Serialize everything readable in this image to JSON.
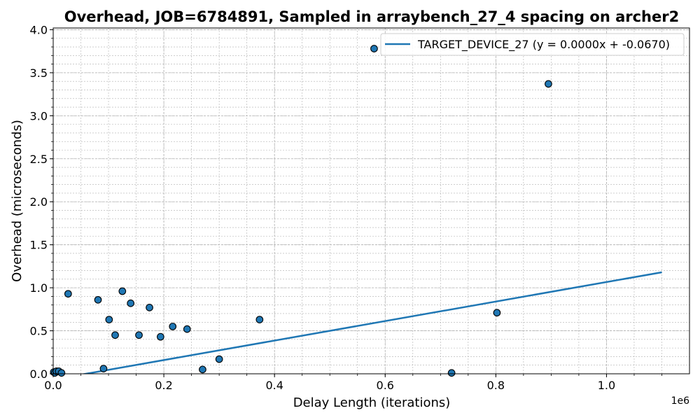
{
  "chart_data": {
    "type": "scatter",
    "title": "Overhead, JOB=6784891, Sampled in arraybench_27_4 spacing on archer2",
    "xlabel": "Delay Length (iterations)",
    "ylabel": "Overhead (microseconds)",
    "x_offset_label": "1e6",
    "xlim": [
      0,
      1150000
    ],
    "ylim": [
      0,
      4.02
    ],
    "x_ticks": [
      0,
      200000,
      400000,
      600000,
      800000,
      1000000
    ],
    "x_tick_labels": [
      "0.0",
      "0.2",
      "0.4",
      "0.6",
      "0.8",
      "1.0"
    ],
    "y_ticks": [
      0,
      0.5,
      1.0,
      1.5,
      2.0,
      2.5,
      3.0,
      3.5,
      4.0
    ],
    "y_tick_labels": [
      "0.0",
      "0.5",
      "1.0",
      "1.5",
      "2.0",
      "2.5",
      "3.0",
      "3.5",
      "4.0"
    ],
    "grid": true,
    "legend_position": "top-right",
    "point_color": "#1f77b4",
    "line_color": "#1f77b4",
    "series": [
      {
        "type": "scatter",
        "points": [
          {
            "x": 1000,
            "y": 0.02
          },
          {
            "x": 3000,
            "y": 0.01
          },
          {
            "x": 6000,
            "y": 0.03
          },
          {
            "x": 10000,
            "y": 0.03
          },
          {
            "x": 15000,
            "y": 0.01
          },
          {
            "x": 27000,
            "y": 0.93
          },
          {
            "x": 81000,
            "y": 0.86
          },
          {
            "x": 91000,
            "y": 0.06
          },
          {
            "x": 101000,
            "y": 0.63
          },
          {
            "x": 112000,
            "y": 0.45
          },
          {
            "x": 125000,
            "y": 0.96
          },
          {
            "x": 140000,
            "y": 0.82
          },
          {
            "x": 155000,
            "y": 0.45
          },
          {
            "x": 174000,
            "y": 0.77
          },
          {
            "x": 194000,
            "y": 0.43
          },
          {
            "x": 216000,
            "y": 0.55
          },
          {
            "x": 242000,
            "y": 0.52
          },
          {
            "x": 270000,
            "y": 0.05
          },
          {
            "x": 300000,
            "y": 0.17
          },
          {
            "x": 373000,
            "y": 0.63
          },
          {
            "x": 580000,
            "y": 3.78
          },
          {
            "x": 720000,
            "y": 0.01
          },
          {
            "x": 802000,
            "y": 0.71
          },
          {
            "x": 895000,
            "y": 3.37
          }
        ]
      },
      {
        "type": "line",
        "name": "TARGET_DEVICE_27 (y = 0.0000x + -0.0670)",
        "x": [
          0,
          1100000
        ],
        "y": [
          -0.067,
          1.18
        ]
      }
    ]
  }
}
